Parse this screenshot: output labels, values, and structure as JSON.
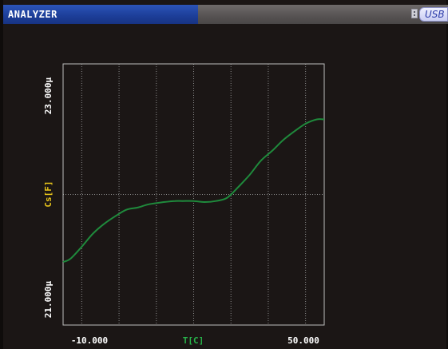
{
  "window": {
    "title": "ANALYZER",
    "usb_label": "USB"
  },
  "icons": {
    "usb_status": "usb-plug-icon"
  },
  "colors": {
    "background": "#1b1615",
    "title_bar": "#1d3f9a",
    "trace": "#1f8a3c",
    "y_label": "#e8c51a",
    "x_label": "#27b24a",
    "ticks": "#ffffff",
    "grid": "#8a8a8a"
  },
  "chart_data": {
    "type": "line",
    "xlabel": "T[C]",
    "ylabel": "Cs[F]",
    "x_tick_labels": [
      "-10.000",
      "50.000"
    ],
    "y_tick_labels": [
      "21.000µ",
      "23.000µ"
    ],
    "xlim": [
      -15,
      55
    ],
    "ylim": [
      20.8,
      23.2
    ],
    "x_grid": [
      -10,
      0,
      10,
      20,
      30,
      40,
      50
    ],
    "y_grid": [
      22.0
    ],
    "grid": true,
    "series": [
      {
        "values_x": [
          -15,
          -13,
          -10,
          -7,
          -4,
          -1,
          2,
          5,
          8,
          12,
          15,
          17,
          20,
          23,
          26,
          29,
          32,
          35,
          38,
          41,
          44,
          47,
          50,
          53,
          55
        ],
        "values_y": [
          21.38,
          21.41,
          21.52,
          21.64,
          21.73,
          21.8,
          21.86,
          21.88,
          21.91,
          21.93,
          21.94,
          21.94,
          21.94,
          21.93,
          21.94,
          21.97,
          22.07,
          22.18,
          22.31,
          22.4,
          22.5,
          22.58,
          22.65,
          22.69,
          22.69
        ]
      }
    ]
  }
}
